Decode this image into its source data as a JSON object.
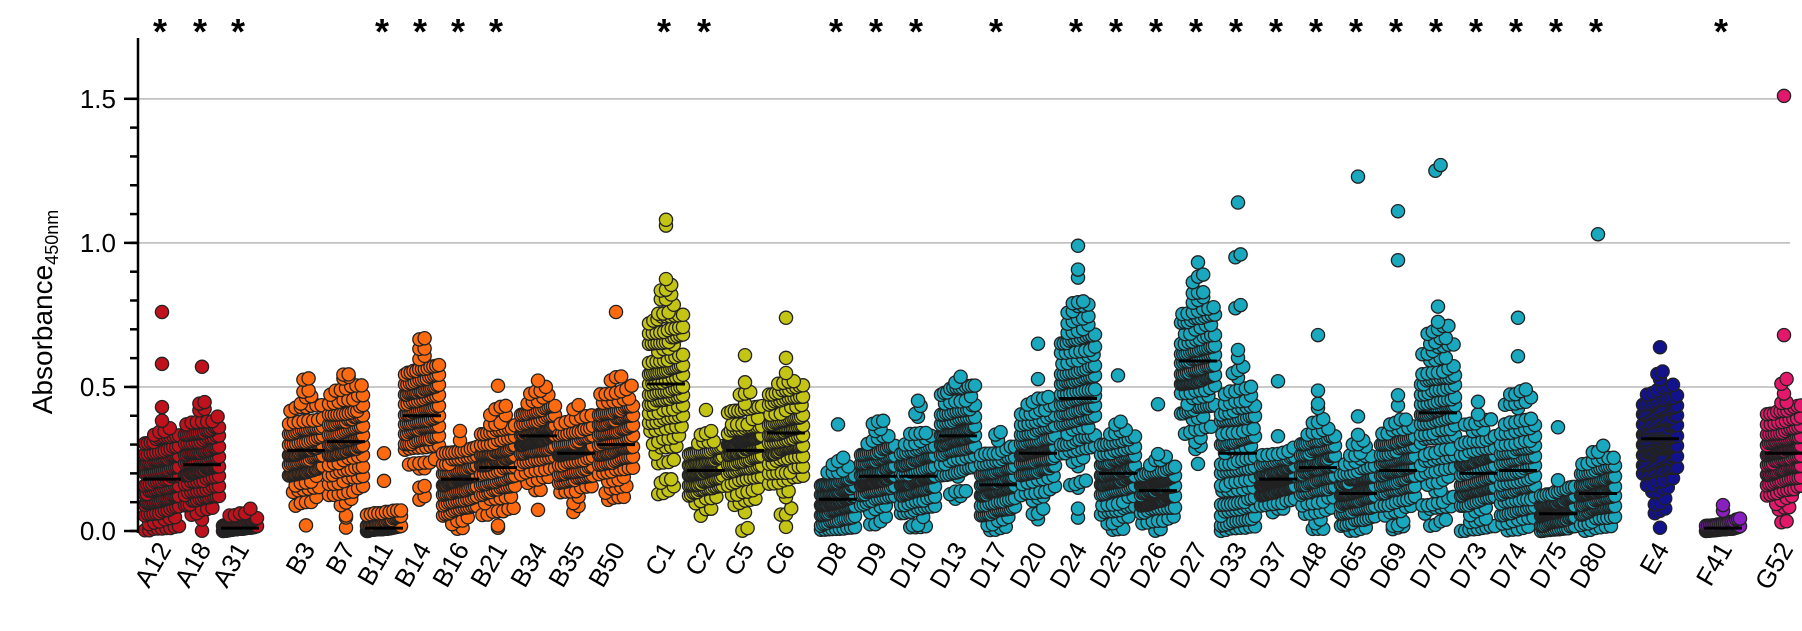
{
  "chart_data": {
    "type": "scatter",
    "ylabel": "Absorbance",
    "ylabel_subscript": "450nm",
    "ylim": [
      0,
      1.6
    ],
    "yticks": [
      "0.0",
      "0.5",
      "1.0",
      "1.5"
    ],
    "grid": "horizontal",
    "significance_marker": "*",
    "groups": [
      {
        "label": "A12",
        "color": "#c0121c",
        "median": 0.18,
        "spread": 0.1,
        "max": 0.77,
        "n": 150,
        "outliers": [
          0.76,
          0.58
        ],
        "significant": true
      },
      {
        "label": "A18",
        "color": "#c0121c",
        "median": 0.23,
        "spread": 0.1,
        "max": 0.58,
        "n": 150,
        "outliers": [
          0.57
        ],
        "significant": true
      },
      {
        "label": "A31",
        "color": "#c0121c",
        "median": 0.01,
        "spread": 0.03,
        "max": 0.11,
        "n": 80,
        "outliers": [],
        "significant": true
      },
      {
        "label": "B3",
        "color": "#ff6a10",
        "median": 0.28,
        "spread": 0.09,
        "max": 0.56,
        "n": 140,
        "outliers": [],
        "significant": false
      },
      {
        "label": "B7",
        "color": "#ff6a10",
        "median": 0.31,
        "spread": 0.1,
        "max": 0.61,
        "n": 150,
        "outliers": [],
        "significant": false
      },
      {
        "label": "B11",
        "color": "#ff6a10",
        "median": 0.01,
        "spread": 0.05,
        "max": 0.27,
        "n": 80,
        "outliers": [
          0.27
        ],
        "significant": true
      },
      {
        "label": "B14",
        "color": "#ff6a10",
        "median": 0.4,
        "spread": 0.11,
        "max": 0.7,
        "n": 160,
        "outliers": [],
        "significant": true
      },
      {
        "label": "B16",
        "color": "#ff6a10",
        "median": 0.18,
        "spread": 0.07,
        "max": 0.46,
        "n": 130,
        "outliers": [],
        "significant": true
      },
      {
        "label": "B21",
        "color": "#ff6a10",
        "median": 0.22,
        "spread": 0.09,
        "max": 0.58,
        "n": 140,
        "outliers": [],
        "significant": true
      },
      {
        "label": "B34",
        "color": "#ff6a10",
        "median": 0.33,
        "spread": 0.09,
        "max": 0.58,
        "n": 150,
        "outliers": [],
        "significant": false
      },
      {
        "label": "B35",
        "color": "#ff6a10",
        "median": 0.27,
        "spread": 0.07,
        "max": 0.54,
        "n": 130,
        "outliers": [],
        "significant": false
      },
      {
        "label": "B50",
        "color": "#ff6a10",
        "median": 0.3,
        "spread": 0.1,
        "max": 0.76,
        "n": 150,
        "outliers": [
          0.76
        ],
        "significant": false
      },
      {
        "label": "C1",
        "color": "#c4c414",
        "median": 0.51,
        "spread": 0.17,
        "max": 1.08,
        "n": 160,
        "outliers": [
          1.08,
          1.06
        ],
        "significant": true
      },
      {
        "label": "C2",
        "color": "#c4c414",
        "median": 0.21,
        "spread": 0.06,
        "max": 0.42,
        "n": 120,
        "outliers": [
          0.42
        ],
        "significant": true
      },
      {
        "label": "C5",
        "color": "#c4c414",
        "median": 0.28,
        "spread": 0.09,
        "max": 0.61,
        "n": 150,
        "outliers": [
          0.61
        ],
        "significant": false
      },
      {
        "label": "C6",
        "color": "#c4c414",
        "median": 0.34,
        "spread": 0.1,
        "max": 0.74,
        "n": 150,
        "outliers": [
          0.74
        ],
        "significant": false
      },
      {
        "label": "D8",
        "color": "#19a8bd",
        "median": 0.11,
        "spread": 0.06,
        "max": 0.37,
        "n": 130,
        "outliers": [
          0.37
        ],
        "significant": true
      },
      {
        "label": "D9",
        "color": "#19a8bd",
        "median": 0.19,
        "spread": 0.07,
        "max": 0.45,
        "n": 140,
        "outliers": [],
        "significant": true
      },
      {
        "label": "D10",
        "color": "#19a8bd",
        "median": 0.19,
        "spread": 0.09,
        "max": 0.59,
        "n": 140,
        "outliers": [],
        "significant": true
      },
      {
        "label": "D13",
        "color": "#19a8bd",
        "median": 0.33,
        "spread": 0.09,
        "max": 0.54,
        "n": 140,
        "outliers": [],
        "significant": false
      },
      {
        "label": "D17",
        "color": "#19a8bd",
        "median": 0.16,
        "spread": 0.07,
        "max": 0.46,
        "n": 130,
        "outliers": [],
        "significant": true
      },
      {
        "label": "D20",
        "color": "#19a8bd",
        "median": 0.27,
        "spread": 0.09,
        "max": 0.65,
        "n": 140,
        "outliers": [
          0.65
        ],
        "significant": false
      },
      {
        "label": "D24",
        "color": "#19a8bd",
        "median": 0.46,
        "spread": 0.16,
        "max": 0.99,
        "n": 170,
        "outliers": [
          0.99
        ],
        "significant": true
      },
      {
        "label": "D25",
        "color": "#19a8bd",
        "median": 0.2,
        "spread": 0.08,
        "max": 0.54,
        "n": 140,
        "outliers": [
          0.54
        ],
        "significant": true
      },
      {
        "label": "D26",
        "color": "#19a8bd",
        "median": 0.14,
        "spread": 0.06,
        "max": 0.44,
        "n": 130,
        "outliers": [
          0.44
        ],
        "significant": true
      },
      {
        "label": "D27",
        "color": "#19a8bd",
        "median": 0.59,
        "spread": 0.14,
        "max": 0.94,
        "n": 160,
        "outliers": [],
        "significant": true
      },
      {
        "label": "D33",
        "color": "#19a8bd",
        "median": 0.27,
        "spread": 0.2,
        "max": 1.14,
        "n": 150,
        "outliers": [
          1.14,
          0.96,
          0.95
        ],
        "significant": true
      },
      {
        "label": "D37",
        "color": "#19a8bd",
        "median": 0.18,
        "spread": 0.06,
        "max": 0.52,
        "n": 130,
        "outliers": [
          0.52
        ],
        "significant": true
      },
      {
        "label": "D48",
        "color": "#19a8bd",
        "median": 0.22,
        "spread": 0.09,
        "max": 0.68,
        "n": 140,
        "outliers": [
          0.68
        ],
        "significant": true
      },
      {
        "label": "D65",
        "color": "#19a8bd",
        "median": 0.13,
        "spread": 0.07,
        "max": 1.23,
        "n": 130,
        "outliers": [
          1.23
        ],
        "significant": true
      },
      {
        "label": "D69",
        "color": "#19a8bd",
        "median": 0.21,
        "spread": 0.09,
        "max": 1.11,
        "n": 140,
        "outliers": [
          1.11,
          0.94
        ],
        "significant": true
      },
      {
        "label": "D70",
        "color": "#19a8bd",
        "median": 0.41,
        "spread": 0.18,
        "max": 1.27,
        "n": 160,
        "outliers": [
          1.27,
          1.25
        ],
        "significant": true
      },
      {
        "label": "D73",
        "color": "#19a8bd",
        "median": 0.2,
        "spread": 0.1,
        "max": 0.67,
        "n": 140,
        "outliers": [],
        "significant": true
      },
      {
        "label": "D74",
        "color": "#19a8bd",
        "median": 0.21,
        "spread": 0.12,
        "max": 0.74,
        "n": 140,
        "outliers": [
          0.74
        ],
        "significant": true
      },
      {
        "label": "D75",
        "color": "#19a8bd",
        "median": 0.06,
        "spread": 0.05,
        "max": 0.36,
        "n": 110,
        "outliers": [
          0.36
        ],
        "significant": true
      },
      {
        "label": "D80",
        "color": "#19a8bd",
        "median": 0.13,
        "spread": 0.07,
        "max": 1.03,
        "n": 130,
        "outliers": [
          1.03
        ],
        "significant": true
      },
      {
        "label": "E4",
        "color": "#11128c",
        "median": 0.32,
        "spread": 0.1,
        "max": 0.7,
        "n": 160,
        "outliers": [],
        "significant": false
      },
      {
        "label": "F41",
        "color": "#8a1fc0",
        "median": 0.01,
        "spread": 0.02,
        "max": 0.09,
        "n": 50,
        "outliers": [
          0.09
        ],
        "significant": true
      },
      {
        "label": "G52",
        "color": "#e4186a",
        "median": 0.27,
        "spread": 0.1,
        "max": 1.51,
        "n": 160,
        "outliers": [
          1.51,
          0.68
        ],
        "significant": false
      }
    ]
  }
}
